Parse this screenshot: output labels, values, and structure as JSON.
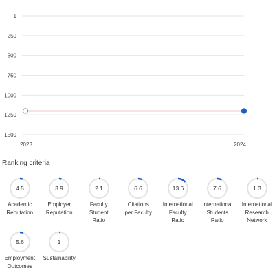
{
  "chart_data": {
    "type": "line",
    "title": "",
    "xlabel": "",
    "ylabel": "",
    "y_inverted": true,
    "ylim": [
      1,
      1500
    ],
    "y_ticks": [
      "1",
      "250",
      "500",
      "750",
      "1000",
      "1250",
      "1500"
    ],
    "x": [
      "2023",
      "2024"
    ],
    "series": [
      {
        "values": [
          1201,
          1201
        ],
        "line_color": "#b5222e",
        "point_fill": [
          "#ffffff",
          "#1a5fc8"
        ]
      }
    ],
    "grid": true
  },
  "criteria": {
    "title": "Ranking criteria",
    "ring_color": "#1a5fc8",
    "track_color": "#e3e3e3",
    "items": [
      {
        "value": "4.5",
        "label": "Academic\nReputation",
        "score": 4.5
      },
      {
        "value": "3.9",
        "label": "Employer\nReputation",
        "score": 3.9
      },
      {
        "value": "2.1",
        "label": "Faculty\nStudent\nRatio",
        "score": 2.1
      },
      {
        "value": "6.6",
        "label": "Citations\nper Faculty",
        "score": 6.6
      },
      {
        "value": "13.6",
        "label": "International\nFaculty\nRatio",
        "score": 13.6
      },
      {
        "value": "7.6",
        "label": "International\nStudents\nRatio",
        "score": 7.6
      },
      {
        "value": "1.3",
        "label": "International\nResearch\nNetwork",
        "score": 1.3
      },
      {
        "value": "5.6",
        "label": "Employment\nOutcomes",
        "score": 5.6
      },
      {
        "value": "1",
        "label": "Sustainability",
        "score": 1
      }
    ]
  }
}
